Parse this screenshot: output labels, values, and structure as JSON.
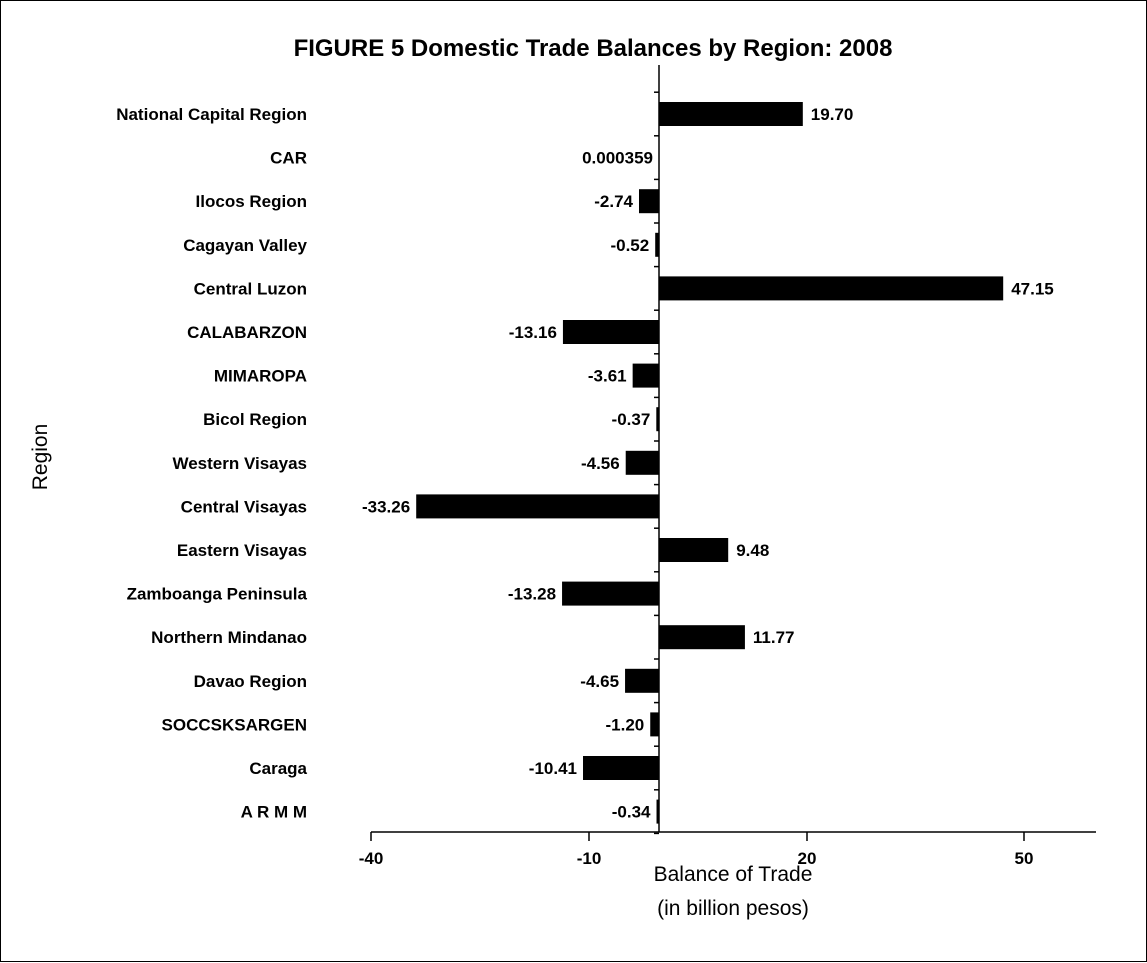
{
  "chart_data": {
    "type": "bar",
    "orientation": "horizontal",
    "title": "FIGURE 5  Domestic Trade Balances by Region:  2008",
    "xlabel_lines": [
      "Balance of Trade",
      "(in billion pesos)"
    ],
    "ylabel": "Region",
    "categories": [
      "National Capital Region",
      "CAR",
      "Ilocos Region",
      "Cagayan Valley",
      "Central Luzon",
      "CALABARZON",
      "MIMAROPA",
      "Bicol Region",
      "Western Visayas",
      "Central Visayas",
      "Eastern Visayas",
      "Zamboanga Peninsula",
      "Northern Mindanao",
      "Davao Region",
      "SOCCSKSARGEN",
      "Caraga",
      "A R M M"
    ],
    "values": [
      19.7,
      0.000359,
      -2.74,
      -0.52,
      47.15,
      -13.16,
      -3.61,
      -0.37,
      -4.56,
      -33.26,
      9.48,
      -13.28,
      11.77,
      -4.65,
      -1.2,
      -10.41,
      -0.34
    ],
    "value_labels": [
      "19.70",
      "0.000359",
      "-2.74",
      "-0.52",
      "47.15",
      "-13.16",
      "-3.61",
      "-0.37",
      "-4.56",
      "-33.26",
      "9.48",
      "-13.28",
      "11.77",
      "-4.65",
      "-1.20",
      "-10.41",
      "-0.34"
    ],
    "x_tick_labels": [
      "-40",
      "-10",
      "20",
      "50"
    ],
    "x_axis": [
      -40,
      60
    ],
    "bar_color": "#000000",
    "grid": false,
    "legend": false
  }
}
